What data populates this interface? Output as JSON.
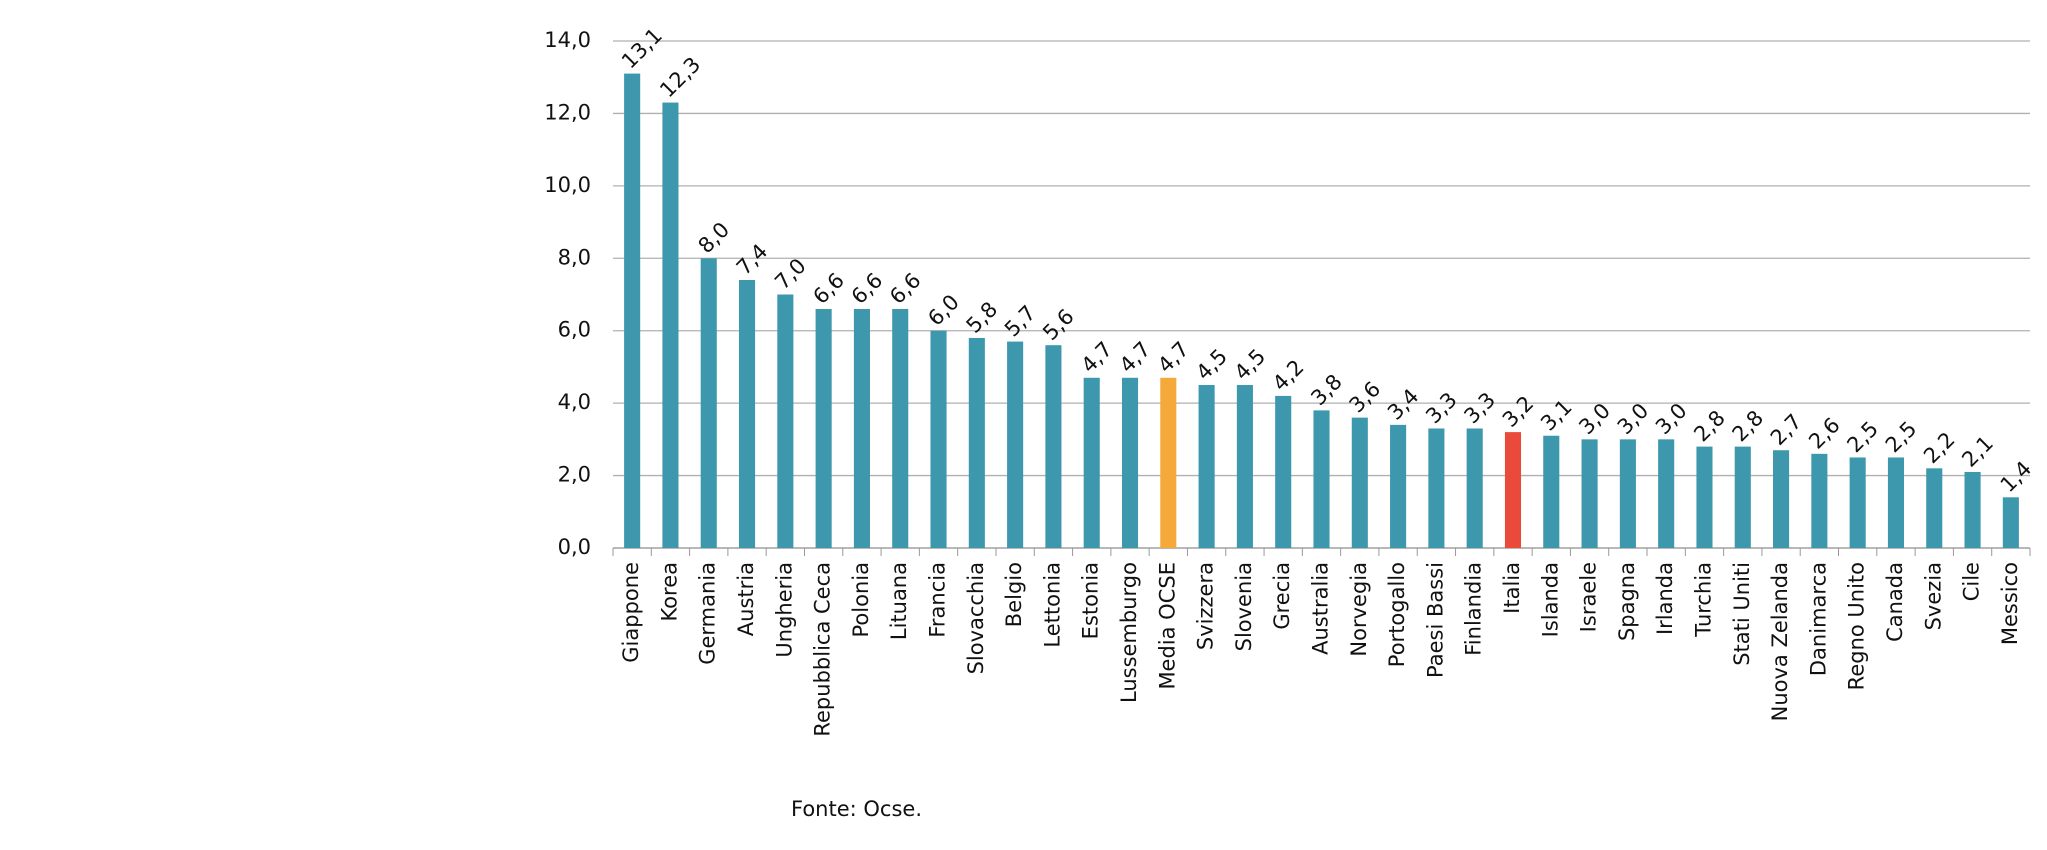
{
  "chart_data": {
    "type": "bar",
    "categories": [
      "Giappone",
      "Korea",
      "Germania",
      "Austria",
      "Ungheria",
      "Repubblica Ceca",
      "Polonia",
      "Lituana",
      "Francia",
      "Slovacchia",
      "Belgio",
      "Lettonia",
      "Estonia",
      "Lussemburgo",
      "Media OCSE",
      "Svizzera",
      "Slovenia",
      "Grecia",
      "Australia",
      "Norvegia",
      "Portogallo",
      "Paesi Bassi",
      "Finlandia",
      "Italia",
      "Islanda",
      "Israele",
      "Spagna",
      "Irlanda",
      "Turchia",
      "Stati Uniti",
      "Nuova Zelanda",
      "Danimarca",
      "Regno Unito",
      "Canada",
      "Svezia",
      "Cile",
      "Messico"
    ],
    "values": [
      13.1,
      12.3,
      8.0,
      7.4,
      7.0,
      6.6,
      6.6,
      6.6,
      6.0,
      5.8,
      5.7,
      5.6,
      4.7,
      4.7,
      4.7,
      4.5,
      4.5,
      4.2,
      3.8,
      3.6,
      3.4,
      3.3,
      3.3,
      3.2,
      3.1,
      3.0,
      3.0,
      3.0,
      2.8,
      2.8,
      2.7,
      2.6,
      2.5,
      2.5,
      2.2,
      2.1,
      1.4
    ],
    "value_labels": [
      "13,1",
      "12,3",
      "8,0",
      "7,4",
      "7,0",
      "6,6",
      "6,6",
      "6,6",
      "6,0",
      "5,8",
      "5,7",
      "5,6",
      "4,7",
      "4,7",
      "4,7",
      "4,5",
      "4,5",
      "4,2",
      "3,8",
      "3,6",
      "3,4",
      "3,3",
      "3,3",
      "3,2",
      "3,1",
      "3,0",
      "3,0",
      "3,0",
      "2,8",
      "2,8",
      "2,7",
      "2,6",
      "2,5",
      "2,5",
      "2,2",
      "2,1",
      "1,4"
    ],
    "color": "#3d97ad",
    "highlight_colors": {
      "Media OCSE": "#f5a93b",
      "Italia": "#e94a3a"
    },
    "ylim": [
      0,
      14
    ],
    "yticks": [
      {
        "value": 0,
        "label": "0,0"
      },
      {
        "value": 2,
        "label": "2,0"
      },
      {
        "value": 4,
        "label": "4,0"
      },
      {
        "value": 6,
        "label": "6,0"
      },
      {
        "value": 8,
        "label": "8,0"
      },
      {
        "value": 10,
        "label": "10,0"
      },
      {
        "value": 12,
        "label": "12,0"
      },
      {
        "value": 14,
        "label": "14,0"
      }
    ],
    "grid": true,
    "source": "Fonte: Ocse."
  }
}
